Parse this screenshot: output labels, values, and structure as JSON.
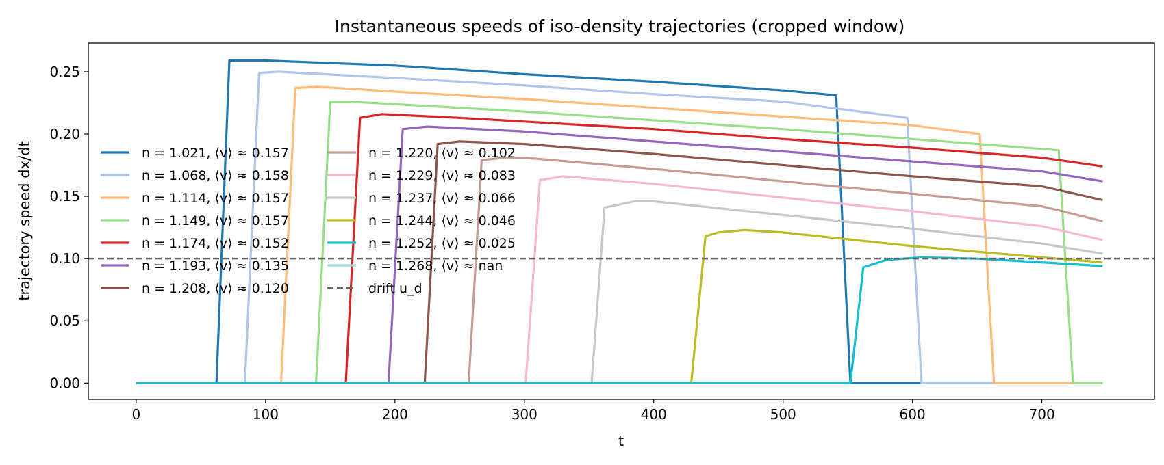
{
  "chart_data": {
    "type": "line",
    "title": "Instantaneous speeds of iso-density trajectories (cropped window)",
    "xlabel": "t",
    "ylabel": "trajectory speed  dx/dt",
    "xlim": [
      -37,
      787
    ],
    "ylim": [
      -0.013,
      0.273
    ],
    "xticks": [
      0,
      100,
      200,
      300,
      400,
      500,
      600,
      700
    ],
    "yticks": [
      0.0,
      0.05,
      0.1,
      0.15,
      0.2,
      0.25
    ],
    "ytick_labels": [
      "0.00",
      "0.05",
      "0.10",
      "0.15",
      "0.20",
      "0.25"
    ],
    "grid": false,
    "legend_position": "center-left",
    "reference_line": {
      "name": "drift u_d",
      "y": 0.1,
      "color": "#666666",
      "style": "dashed"
    },
    "series": [
      {
        "name": "n = 1.021, ⟨v⟩ ≈ 0.157",
        "color": "#1f77b4",
        "x": [
          0,
          62,
          72,
          100,
          200,
          300,
          400,
          500,
          541,
          552,
          747
        ],
        "y": [
          0,
          0,
          0.259,
          0.259,
          0.255,
          0.248,
          0.242,
          0.235,
          0.231,
          0,
          0
        ]
      },
      {
        "name": "n = 1.068, ⟨v⟩ ≈ 0.158",
        "color": "#aec7e8",
        "x": [
          0,
          84,
          95,
          110,
          200,
          300,
          400,
          500,
          596,
          607,
          747
        ],
        "y": [
          0,
          0,
          0.249,
          0.25,
          0.245,
          0.239,
          0.232,
          0.226,
          0.213,
          0,
          0
        ]
      },
      {
        "name": "n = 1.114, ⟨v⟩ ≈ 0.157",
        "color": "#ffbb78",
        "x": [
          0,
          112,
          123,
          140,
          200,
          300,
          400,
          500,
          600,
          652,
          663,
          747
        ],
        "y": [
          0,
          0,
          0.237,
          0.238,
          0.234,
          0.228,
          0.221,
          0.214,
          0.207,
          0.2,
          0,
          0
        ]
      },
      {
        "name": "n = 1.149, ⟨v⟩ ≈ 0.157",
        "color": "#98df8a",
        "x": [
          0,
          139,
          150,
          165,
          200,
          300,
          400,
          500,
          600,
          713,
          724,
          747
        ],
        "y": [
          0,
          0,
          0.226,
          0.226,
          0.224,
          0.218,
          0.211,
          0.204,
          0.196,
          0.187,
          0,
          0
        ]
      },
      {
        "name": "n = 1.174, ⟨v⟩ ≈ 0.152",
        "color": "#d62728",
        "x": [
          0,
          162,
          173,
          190,
          250,
          300,
          400,
          500,
          600,
          700,
          747
        ],
        "y": [
          0,
          0,
          0.213,
          0.216,
          0.213,
          0.21,
          0.204,
          0.196,
          0.189,
          0.181,
          0.174
        ]
      },
      {
        "name": "n = 1.193, ⟨v⟩ ≈ 0.135",
        "color": "#9467bd",
        "x": [
          0,
          195,
          206,
          225,
          300,
          400,
          500,
          600,
          700,
          747
        ],
        "y": [
          0,
          0,
          0.204,
          0.206,
          0.202,
          0.194,
          0.186,
          0.178,
          0.17,
          0.162
        ]
      },
      {
        "name": "n = 1.208, ⟨v⟩ ≈ 0.120",
        "color": "#8c564b",
        "x": [
          0,
          223,
          233,
          250,
          300,
          400,
          500,
          600,
          700,
          747
        ],
        "y": [
          0,
          0,
          0.192,
          0.194,
          0.192,
          0.184,
          0.175,
          0.166,
          0.158,
          0.147
        ]
      },
      {
        "name": "n = 1.220, ⟨v⟩ ≈ 0.102",
        "color": "#c49c94",
        "x": [
          0,
          257,
          267,
          285,
          300,
          400,
          500,
          600,
          700,
          747
        ],
        "y": [
          0,
          0,
          0.179,
          0.181,
          0.181,
          0.172,
          0.162,
          0.152,
          0.142,
          0.13
        ]
      },
      {
        "name": "n = 1.229, ⟨v⟩ ≈ 0.083",
        "color": "#f7b6d2",
        "x": [
          0,
          301,
          312,
          330,
          400,
          500,
          600,
          700,
          747
        ],
        "y": [
          0,
          0,
          0.163,
          0.166,
          0.16,
          0.149,
          0.138,
          0.126,
          0.115
        ]
      },
      {
        "name": "n = 1.237, ⟨v⟩ ≈ 0.066",
        "color": "#c7c7c7",
        "x": [
          0,
          352,
          362,
          385,
          400,
          500,
          600,
          700,
          747
        ],
        "y": [
          0,
          0,
          0.141,
          0.146,
          0.146,
          0.135,
          0.124,
          0.112,
          0.104
        ]
      },
      {
        "name": "n = 1.244, ⟨v⟩ ≈ 0.046",
        "color": "#bcbd22",
        "x": [
          0,
          429,
          440,
          450,
          470,
          500,
          600,
          700,
          747
        ],
        "y": [
          0,
          0,
          0.118,
          0.121,
          0.123,
          0.121,
          0.11,
          0.101,
          0.097
        ]
      },
      {
        "name": "n = 1.252, ⟨v⟩ ≈ 0.025",
        "color": "#17becf",
        "x": [
          0,
          552,
          562,
          580,
          607,
          650,
          700,
          747
        ],
        "y": [
          0,
          0,
          0.093,
          0.099,
          0.101,
          0.1,
          0.097,
          0.094
        ]
      },
      {
        "name": "n = 1.268, ⟨v⟩ ≈ nan",
        "color": "#9edae5",
        "x": [],
        "y": []
      }
    ]
  }
}
